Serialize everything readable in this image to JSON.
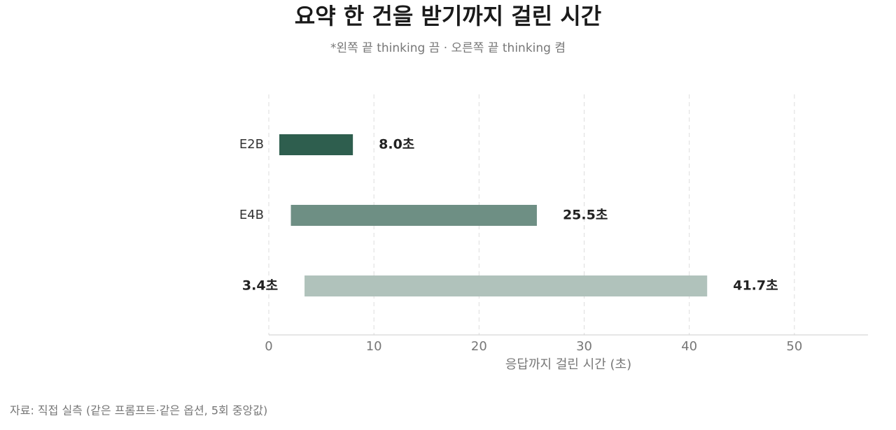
{
  "chart_data": {
    "type": "range_bar",
    "title": "요약 한 건을 받기까지 걸린 시간",
    "subtitle": "*왼쪽 끝 thinking 끔 · 오른쪽 끝 thinking 켬",
    "x_label": "응답까지 걸린 시간 (초)",
    "source": "자료: 직접 실측 (같은 프롬프트·같은 옵션, 5회 중앙값)",
    "categories": [
      "E2B",
      "E4B",
      null
    ],
    "starts": [
      1.0,
      2.1,
      3.4
    ],
    "start_labels": [
      null,
      null,
      "3.4초"
    ],
    "values": [
      8.0,
      25.5,
      41.7
    ],
    "value_labels": [
      "8.0초",
      "25.5초",
      "41.7초"
    ],
    "colors": [
      "#2e5e4e",
      "#6e8f84",
      "#b0c2bb"
    ],
    "xlim": [
      0,
      57
    ],
    "xticks": [
      0,
      10,
      20,
      30,
      40,
      50
    ],
    "grid": true
  }
}
